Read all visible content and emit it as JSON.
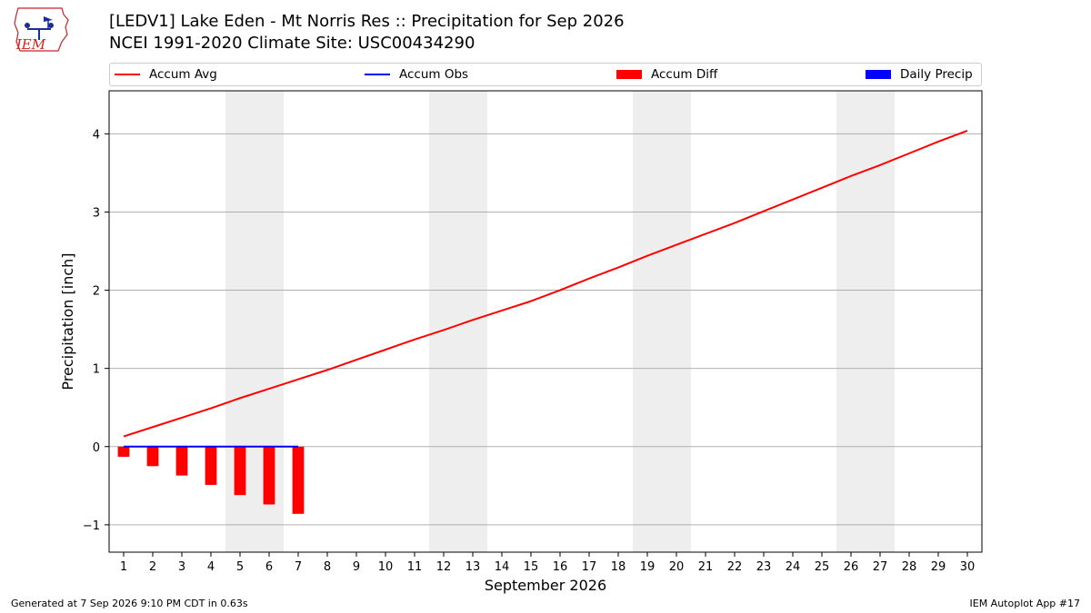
{
  "logo": {
    "text": "IEM"
  },
  "header": {
    "title_line1": "[LEDV1] Lake Eden - Mt Norris Res :: Precipitation for Sep 2026",
    "title_line2": "NCEI 1991-2020 Climate Site: USC00434290"
  },
  "legend": {
    "accum_avg": "Accum Avg",
    "accum_obs": "Accum Obs",
    "accum_diff": "Accum Diff",
    "daily_precip": "Daily Precip"
  },
  "colors": {
    "accum_avg": "#ff0000",
    "accum_obs": "#0000ff",
    "accum_diff": "#ff0000",
    "daily_precip": "#0000ff",
    "weekend_shade": "#eeeeee",
    "grid": "#b0b0b0"
  },
  "chart_data": {
    "type": "bar",
    "xlabel": "September 2026",
    "ylabel": "Precipitation [inch]",
    "xlim": [
      0.5,
      30.5
    ],
    "ylim": [
      -1.35,
      4.55
    ],
    "yticks": [
      -1,
      0,
      1,
      2,
      3,
      4
    ],
    "ytick_labels": [
      "−1",
      "0",
      "1",
      "2",
      "3",
      "4"
    ],
    "grid": "horizontal",
    "legend_position": "top",
    "days": [
      1,
      2,
      3,
      4,
      5,
      6,
      7,
      8,
      9,
      10,
      11,
      12,
      13,
      14,
      15,
      16,
      17,
      18,
      19,
      20,
      21,
      22,
      23,
      24,
      25,
      26,
      27,
      28,
      29,
      30
    ],
    "shaded_day_ranges": [
      [
        4.5,
        6.5
      ],
      [
        11.5,
        13.5
      ],
      [
        18.5,
        20.5
      ],
      [
        25.5,
        27.5
      ]
    ],
    "series": [
      {
        "name": "Accum Avg",
        "type": "line",
        "x": [
          1,
          2,
          3,
          4,
          5,
          6,
          7,
          8,
          9,
          10,
          11,
          12,
          13,
          14,
          15,
          16,
          17,
          18,
          19,
          20,
          21,
          22,
          23,
          24,
          25,
          26,
          27,
          28,
          29,
          30
        ],
        "values": [
          0.13,
          0.25,
          0.37,
          0.49,
          0.62,
          0.74,
          0.86,
          0.98,
          1.11,
          1.24,
          1.37,
          1.49,
          1.62,
          1.74,
          1.86,
          2.0,
          2.15,
          2.29,
          2.44,
          2.58,
          2.72,
          2.86,
          3.01,
          3.16,
          3.31,
          3.46,
          3.6,
          3.75,
          3.9,
          4.04
        ]
      },
      {
        "name": "Accum Obs",
        "type": "line",
        "x": [
          1,
          2,
          3,
          4,
          5,
          6,
          7
        ],
        "values": [
          0,
          0,
          0,
          0,
          0,
          0,
          0
        ]
      },
      {
        "name": "Accum Diff",
        "type": "bar",
        "x": [
          1,
          2,
          3,
          4,
          5,
          6,
          7
        ],
        "values": [
          -0.13,
          -0.25,
          -0.37,
          -0.49,
          -0.62,
          -0.74,
          -0.86
        ]
      },
      {
        "name": "Daily Precip",
        "type": "bar",
        "x": [
          1,
          2,
          3,
          4,
          5,
          6,
          7
        ],
        "values": [
          0,
          0,
          0,
          0,
          0,
          0,
          0
        ]
      }
    ]
  },
  "footer": {
    "generated": "Generated at 7 Sep 2026 9:10 PM CDT in 0.63s",
    "app": "IEM Autoplot App #17"
  }
}
